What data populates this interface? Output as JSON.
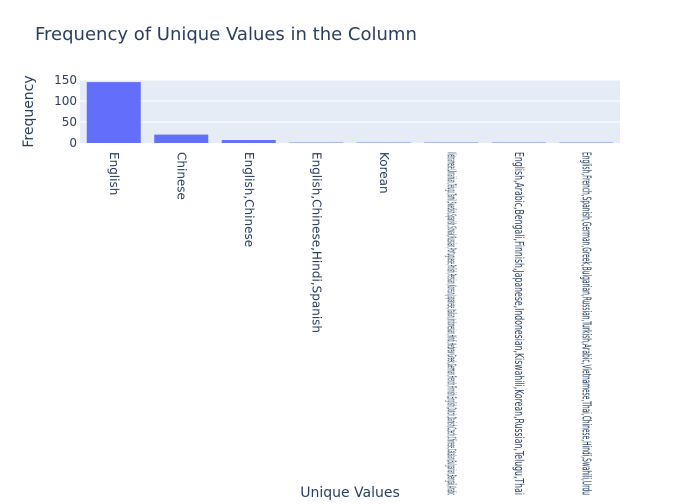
{
  "chart_data": {
    "type": "bar",
    "title": "Frequency of Unique Values in the Column",
    "xlabel": "Unique Values",
    "ylabel": "Frequency",
    "ylim": [
      0,
      150
    ],
    "yticks": [
      0,
      50,
      100,
      150
    ],
    "grid": true,
    "categories": [
      "English",
      "Chinese",
      "English,Chinese",
      "English,Chinese,Hindi,Spanish",
      "Korean",
      "Vietnamese,Ukrainian,Telugu,Tamil,Swedish,Spanish,Slovak,Russian,Portuguese,Polish,Persian,Korean,Japanese,Italian,Indonesian,Hindi,Hebrew,Greek,German,French,Finnish,English,Dutch,Danish,Czech,Chinese,Catalan,Bulgarian,Bengali,Arabic",
      "English,Arabic,Bengali,Finnish,Japanese,Indonesian,Kiswahili,Korean,Russian,Telugu,Thai",
      "English,French,Spanish,German,Greek,Bulgarian,Russian,Turkish,Arabic,Vietnamese,Thai,Chinese,Hindi,Swahili,Urdu"
    ],
    "values": [
      145,
      20,
      7,
      1,
      1,
      1,
      1,
      1
    ],
    "colors": {
      "bar": "#636efa",
      "plot_bg": "#e5ecf6",
      "grid": "#ffffff",
      "text": "#2a3f5f"
    }
  }
}
